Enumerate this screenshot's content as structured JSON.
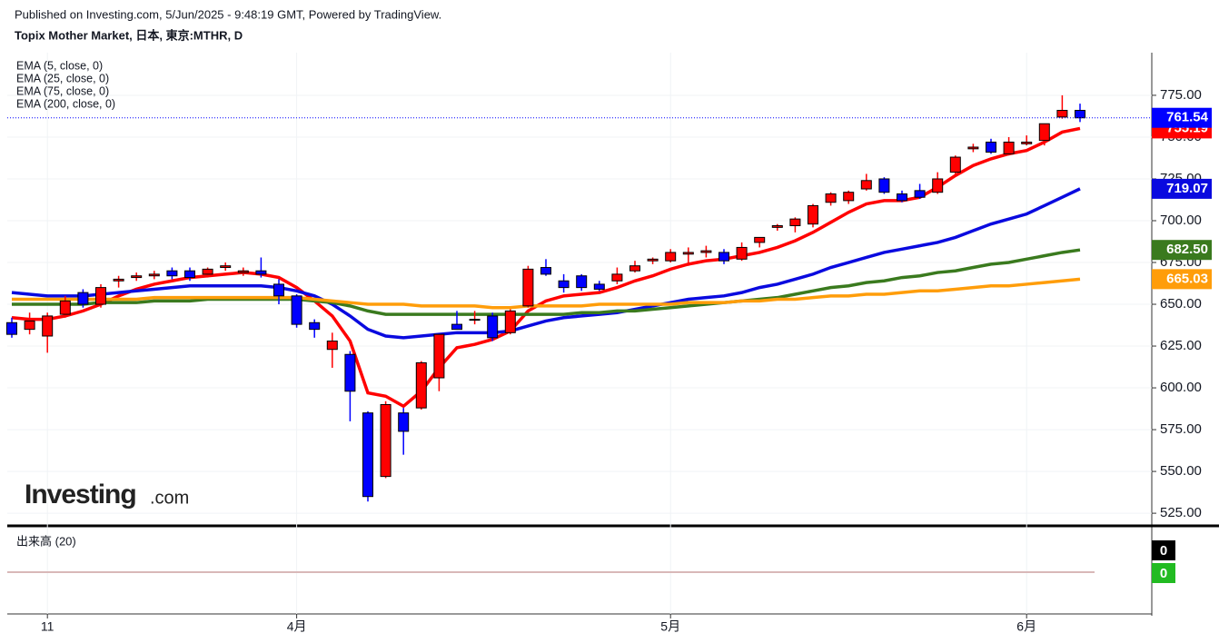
{
  "header": {
    "published": "Published on Investing.com, 5/Jun/2025 - 9:48:19 GMT, Powered by TradingView.",
    "instrument": "Topix Mother Market, 日本, 東京:MTHR, D"
  },
  "logo": {
    "brand": "Investing",
    "suffix": ".com"
  },
  "chart_data": {
    "type": "candlestick",
    "categories": [
      null,
      null,
      "11",
      null,
      null,
      null,
      null,
      null,
      null,
      null,
      null,
      null,
      null,
      null,
      null,
      null,
      "4月",
      null,
      null,
      null,
      null,
      null,
      null,
      null,
      null,
      null,
      null,
      null,
      null,
      null,
      null,
      null,
      null,
      null,
      null,
      null,
      null,
      "5月",
      null,
      null,
      null,
      null,
      null,
      null,
      null,
      null,
      null,
      null,
      null,
      null,
      null,
      null,
      null,
      null,
      null,
      null,
      null,
      "6月",
      null,
      null,
      null
    ],
    "open": [
      639,
      635,
      631,
      644,
      657,
      650,
      664,
      666,
      667,
      670,
      670,
      668,
      672,
      669,
      670,
      662,
      655,
      639,
      623,
      620,
      585,
      547,
      585,
      588,
      606,
      638,
      641,
      643,
      633,
      649,
      672,
      664,
      667,
      662,
      664,
      670,
      676,
      676,
      680,
      681,
      681,
      677,
      687,
      696,
      697,
      698,
      711,
      712,
      719,
      725,
      716,
      718,
      717,
      729,
      743,
      747,
      740,
      746,
      748,
      762,
      766
    ],
    "high": [
      642,
      645,
      645,
      655,
      659,
      662,
      667,
      669,
      670,
      672,
      672,
      672,
      675,
      672,
      678,
      665,
      656,
      641,
      633,
      622,
      586,
      592,
      588,
      616,
      632,
      646,
      646,
      645,
      647,
      673,
      677,
      668,
      668,
      664,
      672,
      676,
      678,
      683,
      684,
      685,
      683,
      687,
      690,
      698,
      702,
      710,
      717,
      718,
      728,
      726,
      718,
      722,
      729,
      739,
      746,
      749,
      750,
      751,
      758,
      775,
      770
    ],
    "low": [
      630,
      632,
      621,
      642,
      648,
      648,
      660,
      664,
      665,
      665,
      664,
      666,
      670,
      667,
      666,
      650,
      636,
      630,
      612,
      580,
      532,
      546,
      560,
      587,
      598,
      635,
      638,
      628,
      632,
      648,
      667,
      657,
      658,
      658,
      662,
      669,
      674,
      675,
      673,
      678,
      674,
      676,
      684,
      694,
      693,
      696,
      709,
      710,
      718,
      716,
      711,
      713,
      716,
      728,
      741,
      740,
      739,
      745,
      745,
      761,
      759
    ],
    "close": [
      632,
      640,
      643,
      652,
      650,
      660,
      665,
      667,
      668,
      667,
      666,
      671,
      673,
      670,
      668,
      655,
      638,
      635,
      628,
      598,
      535,
      590,
      574,
      615,
      632,
      635,
      641,
      630,
      646,
      671,
      668,
      660,
      660,
      659,
      668,
      673,
      677,
      681,
      681,
      682,
      676,
      684,
      690,
      697,
      701,
      709,
      716,
      717,
      724,
      717,
      712,
      714,
      725,
      738,
      744,
      741,
      747,
      747,
      758,
      766,
      761.54
    ],
    "up_color": "#ff0000",
    "down_color": "#0000ff",
    "last_label": "761.54",
    "last_line": true,
    "series": [
      {
        "name": "EMA (5, close, 0)",
        "color": "#ff0000",
        "last_label": "755.19",
        "values": [
          642,
          641,
          641,
          643,
          646,
          650,
          655,
          659,
          662,
          664,
          666,
          667,
          668,
          669,
          668,
          666,
          660,
          652,
          643,
          628,
          597,
          595,
          589,
          598,
          612,
          624,
          626,
          629,
          634,
          646,
          652,
          655,
          656,
          657,
          660,
          664,
          667,
          671,
          674,
          676,
          677,
          679,
          681,
          684,
          688,
          693,
          699,
          705,
          710,
          712,
          712,
          714,
          720,
          727,
          733,
          737,
          740,
          742,
          747,
          753,
          755.19
        ]
      },
      {
        "name": "EMA (25, close, 0)",
        "color": "#0a0adf",
        "last_label": "719.07",
        "values": [
          657,
          656,
          655,
          655,
          655,
          656,
          657,
          658,
          659,
          660,
          661,
          661,
          661,
          661,
          661,
          660,
          658,
          655,
          650,
          643,
          635,
          631,
          630,
          631,
          632,
          633,
          633,
          633,
          634,
          637,
          640,
          642,
          643,
          644,
          645,
          647,
          649,
          651,
          653,
          654,
          655,
          657,
          660,
          662,
          665,
          668,
          672,
          675,
          678,
          681,
          683,
          685,
          687,
          690,
          694,
          698,
          701,
          704,
          709,
          714,
          719.07
        ]
      },
      {
        "name": "EMA (75, close, 0)",
        "color": "#3a7a1e",
        "last_label": "682.50",
        "values": [
          650,
          650,
          650,
          650,
          650,
          651,
          651,
          651,
          652,
          652,
          652,
          653,
          653,
          653,
          653,
          653,
          653,
          652,
          651,
          649,
          646,
          644,
          644,
          644,
          644,
          644,
          644,
          644,
          644,
          644,
          644,
          644,
          645,
          645,
          646,
          646,
          647,
          648,
          649,
          650,
          651,
          652,
          653,
          654,
          656,
          658,
          660,
          661,
          663,
          664,
          666,
          667,
          669,
          670,
          672,
          674,
          675,
          677,
          679,
          681,
          682.5
        ]
      },
      {
        "name": "EMA (200, close, 0)",
        "color": "#ff9d0a",
        "last_label": "665.03",
        "values": [
          653,
          653,
          653,
          653,
          653,
          653,
          653,
          653,
          654,
          654,
          654,
          654,
          654,
          654,
          654,
          654,
          654,
          653,
          652,
          651,
          650,
          650,
          650,
          649,
          649,
          649,
          649,
          648,
          648,
          649,
          649,
          649,
          649,
          650,
          650,
          650,
          650,
          650,
          651,
          651,
          651,
          652,
          652,
          653,
          653,
          654,
          655,
          655,
          656,
          656,
          657,
          658,
          658,
          659,
          660,
          661,
          661,
          662,
          663,
          664,
          665.03
        ]
      }
    ],
    "ylim": [
      518,
      800.5
    ],
    "yticks": [
      {
        "value": 525,
        "label": "525.00"
      },
      {
        "value": 550,
        "label": "550.00"
      },
      {
        "value": 575,
        "label": "575.00"
      },
      {
        "value": 600,
        "label": "600.00"
      },
      {
        "value": 625,
        "label": "625.00"
      },
      {
        "value": 650,
        "label": "650.00"
      },
      {
        "value": 675,
        "label": "675.00"
      },
      {
        "value": 700,
        "label": "700.00"
      },
      {
        "value": 725,
        "label": "725.00"
      },
      {
        "value": 750,
        "label": "750.00"
      },
      {
        "value": 775,
        "label": "775.00"
      }
    ],
    "grid": true
  },
  "volume": {
    "title": "出来高 (20)",
    "labels": [
      "0",
      "0"
    ]
  }
}
